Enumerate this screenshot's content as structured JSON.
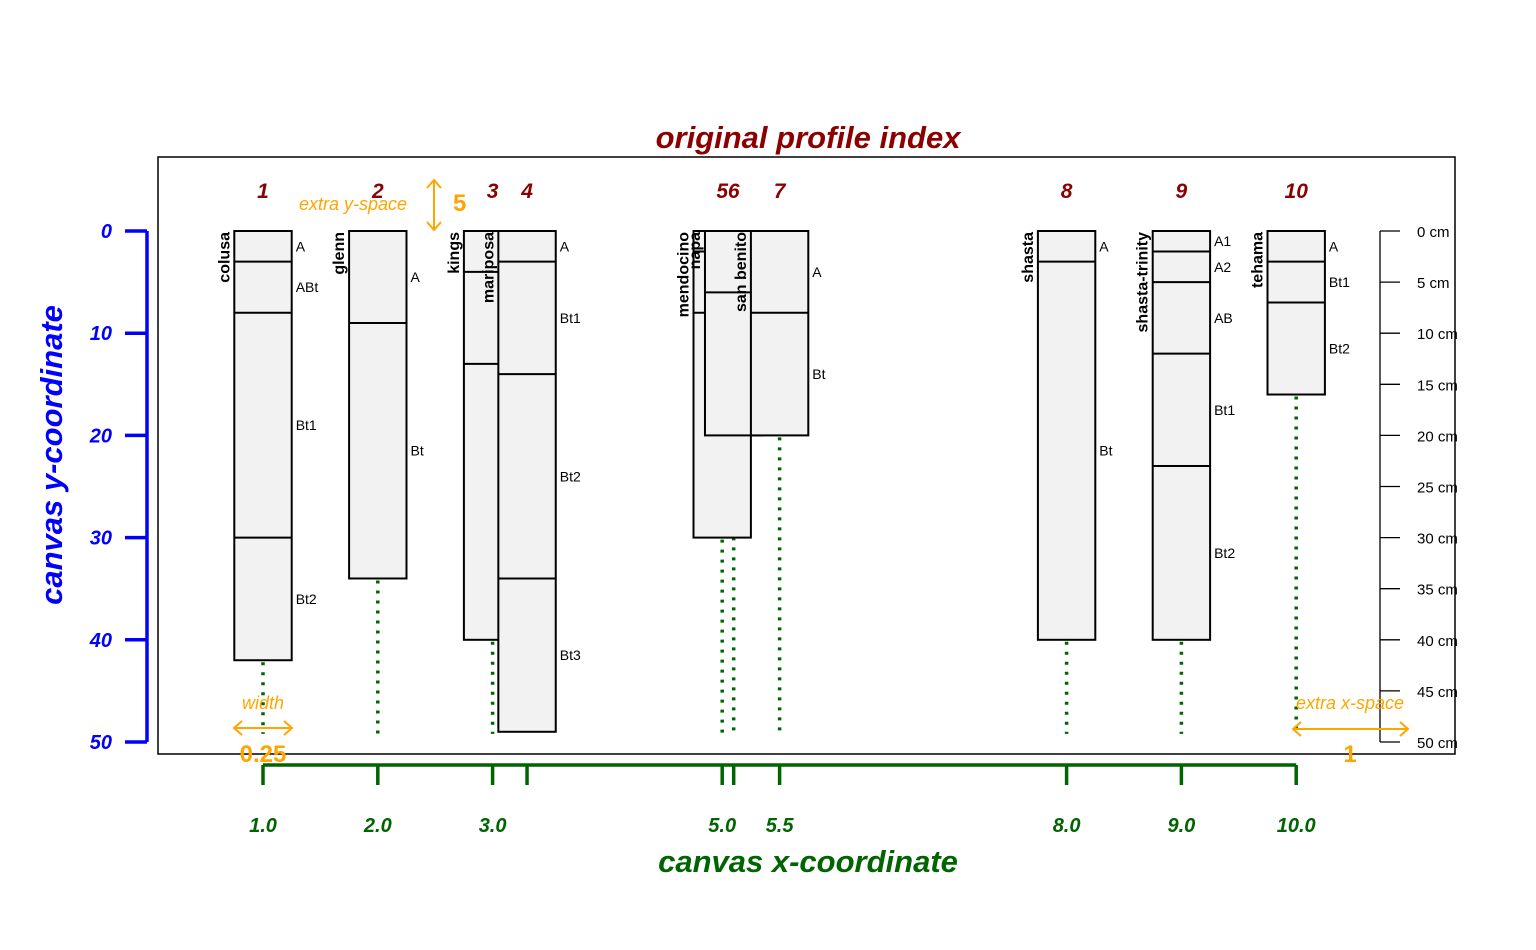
{
  "title": "original profile index",
  "xlabel": "canvas x-coordinate",
  "ylabel": "canvas y-coordinate",
  "y_ticks": [
    "0",
    "10",
    "20",
    "30",
    "40",
    "50"
  ],
  "x_ticks": [
    "1.0",
    "2.0",
    "3.0",
    "5.0",
    "5.5",
    "8.0",
    "9.0",
    "10.0"
  ],
  "depth_ticks": [
    "0 cm",
    "5 cm",
    "10 cm",
    "15 cm",
    "20 cm",
    "25 cm",
    "30 cm",
    "35 cm",
    "40 cm",
    "45 cm",
    "50 cm"
  ],
  "annotations": {
    "extra_y_label": "extra y-space",
    "extra_y_value": "5",
    "width_label": "width",
    "width_value": "0.25",
    "extra_x_label": "extra x-space",
    "extra_x_value": "1"
  },
  "colors": {
    "title": "#8b0000",
    "x_axis": "#006400",
    "y_axis": "#0000ff",
    "annotation": "#ffa500",
    "profile_fill": "#f2f2f2"
  },
  "chart_data": {
    "type": "soil-profile-sketch",
    "ylim": [
      0,
      50
    ],
    "profiles": [
      {
        "index": "1",
        "name": "colusa",
        "x": 1.0,
        "bottom": 42,
        "horizons": [
          {
            "top": 0,
            "bottom": 3,
            "name": "A"
          },
          {
            "top": 3,
            "bottom": 8,
            "name": "ABt"
          },
          {
            "top": 8,
            "bottom": 30,
            "name": "Bt1"
          },
          {
            "top": 30,
            "bottom": 42,
            "name": "Bt2"
          }
        ]
      },
      {
        "index": "2",
        "name": "glenn",
        "x": 2.0,
        "bottom": 34,
        "horizons": [
          {
            "top": 0,
            "bottom": 9,
            "name": "A"
          },
          {
            "top": 9,
            "bottom": 34,
            "name": "Bt"
          }
        ]
      },
      {
        "index": "3",
        "name": "kings",
        "x": 3.0,
        "bottom": 40,
        "horizons": [
          {
            "top": 0,
            "bottom": 4,
            "name": ""
          },
          {
            "top": 4,
            "bottom": 13,
            "name": ""
          },
          {
            "top": 13,
            "bottom": 40,
            "name": ""
          }
        ]
      },
      {
        "index": "4",
        "name": "mariposa",
        "x": 3.3,
        "bottom": 49,
        "horizons": [
          {
            "top": 0,
            "bottom": 3,
            "name": "A"
          },
          {
            "top": 3,
            "bottom": 14,
            "name": "Bt1"
          },
          {
            "top": 14,
            "bottom": 34,
            "name": "Bt2"
          },
          {
            "top": 34,
            "bottom": 49,
            "name": "Bt3"
          }
        ]
      },
      {
        "index": "5",
        "name": "mendocino",
        "x": 5.0,
        "bottom": 30,
        "horizons": [
          {
            "top": 0,
            "bottom": 2,
            "name": ""
          },
          {
            "top": 2,
            "bottom": 8,
            "name": ""
          },
          {
            "top": 8,
            "bottom": 30,
            "name": ""
          }
        ]
      },
      {
        "index": "6",
        "name": "napa",
        "x": 5.1,
        "bottom": 20,
        "horizons": [
          {
            "top": 0,
            "bottom": 6,
            "name": ""
          },
          {
            "top": 6,
            "bottom": 20,
            "name": ""
          }
        ]
      },
      {
        "index": "7",
        "name": "san benito",
        "x": 5.5,
        "bottom": 20,
        "horizons": [
          {
            "top": 0,
            "bottom": 8,
            "name": "A"
          },
          {
            "top": 8,
            "bottom": 20,
            "name": "Bt"
          }
        ]
      },
      {
        "index": "8",
        "name": "shasta",
        "x": 8.0,
        "bottom": 40,
        "horizons": [
          {
            "top": 0,
            "bottom": 3,
            "name": "A"
          },
          {
            "top": 3,
            "bottom": 40,
            "name": "Bt"
          }
        ]
      },
      {
        "index": "9",
        "name": "shasta-trinity",
        "x": 9.0,
        "bottom": 40,
        "horizons": [
          {
            "top": 0,
            "bottom": 2,
            "name": "A1"
          },
          {
            "top": 2,
            "bottom": 5,
            "name": "A2"
          },
          {
            "top": 5,
            "bottom": 12,
            "name": "AB"
          },
          {
            "top": 12,
            "bottom": 23,
            "name": "Bt1"
          },
          {
            "top": 23,
            "bottom": 40,
            "name": "Bt2"
          }
        ]
      },
      {
        "index": "10",
        "name": "tehama",
        "x": 10.0,
        "bottom": 16,
        "horizons": [
          {
            "top": 0,
            "bottom": 3,
            "name": "A"
          },
          {
            "top": 3,
            "bottom": 7,
            "name": "Bt1"
          },
          {
            "top": 7,
            "bottom": 16,
            "name": "Bt2"
          }
        ]
      }
    ]
  }
}
